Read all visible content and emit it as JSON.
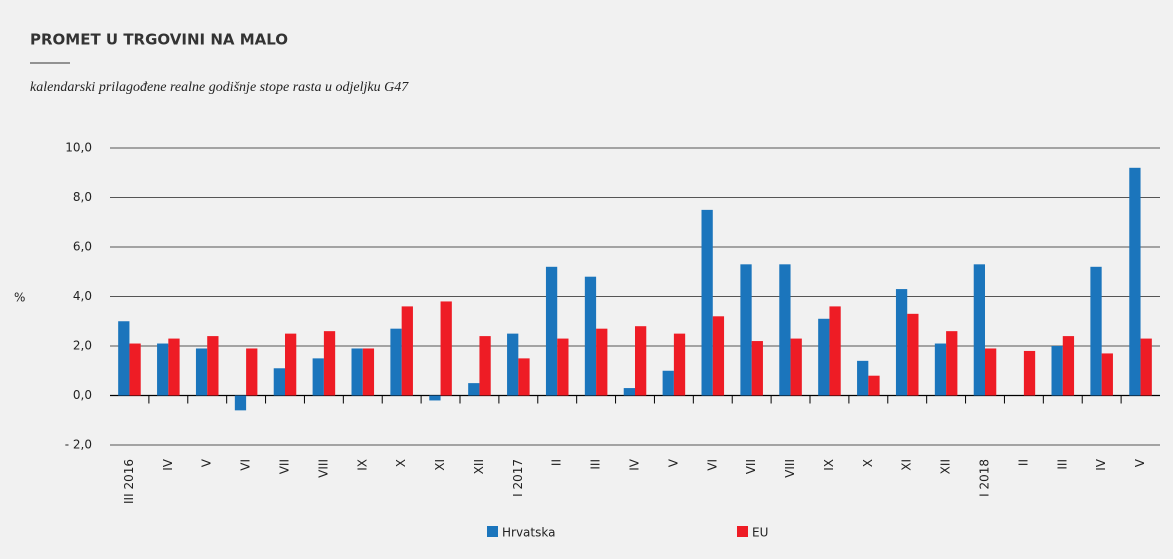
{
  "chart_data": {
    "type": "bar",
    "title": "PROMET U TRGOVINI NA MALO",
    "subtitle": "kalendarski prilagođene realne godišnje stope rasta u odjeljku G47",
    "y_label": "%",
    "categories": [
      "III 2016",
      "IV",
      "V",
      "VI",
      "VII",
      "VIII",
      "IX",
      "X",
      "XI",
      "XII",
      "I 2017",
      "II",
      "III",
      "IV",
      "V",
      "VI",
      "VII",
      "VIII",
      "IX",
      "X",
      "XI",
      "XII",
      "I 2018",
      "II",
      "III",
      "IV",
      "V"
    ],
    "series": [
      {
        "name": "Hrvatska",
        "color": "#1b75bc",
        "values": [
          3.0,
          2.1,
          1.9,
          -0.6,
          1.1,
          1.5,
          1.9,
          2.7,
          -0.2,
          0.5,
          2.5,
          5.2,
          4.8,
          0.3,
          1.0,
          7.5,
          5.3,
          5.3,
          3.1,
          1.4,
          4.3,
          2.1,
          5.3,
          0.0,
          2.0,
          5.2,
          9.2
        ]
      },
      {
        "name": "EU",
        "color": "#ee1c25",
        "values": [
          2.1,
          2.3,
          2.4,
          1.9,
          2.5,
          2.6,
          1.9,
          3.6,
          3.8,
          2.4,
          1.5,
          2.3,
          2.7,
          2.8,
          2.5,
          3.2,
          2.2,
          2.3,
          3.6,
          0.8,
          3.3,
          2.6,
          1.9,
          1.8,
          2.4,
          1.7,
          2.3
        ]
      }
    ],
    "ylim": [
      -2,
      10
    ],
    "yticks": [
      {
        "value": -2,
        "label": "- 2,0"
      },
      {
        "value": 0,
        "label": "0,0"
      },
      {
        "value": 2,
        "label": "2,0"
      },
      {
        "value": 4,
        "label": "4,0"
      },
      {
        "value": 6,
        "label": "6,0"
      },
      {
        "value": 8,
        "label": "8,0"
      },
      {
        "value": 10,
        "label": "10,0"
      }
    ],
    "grid": true,
    "legend": "bottom"
  }
}
